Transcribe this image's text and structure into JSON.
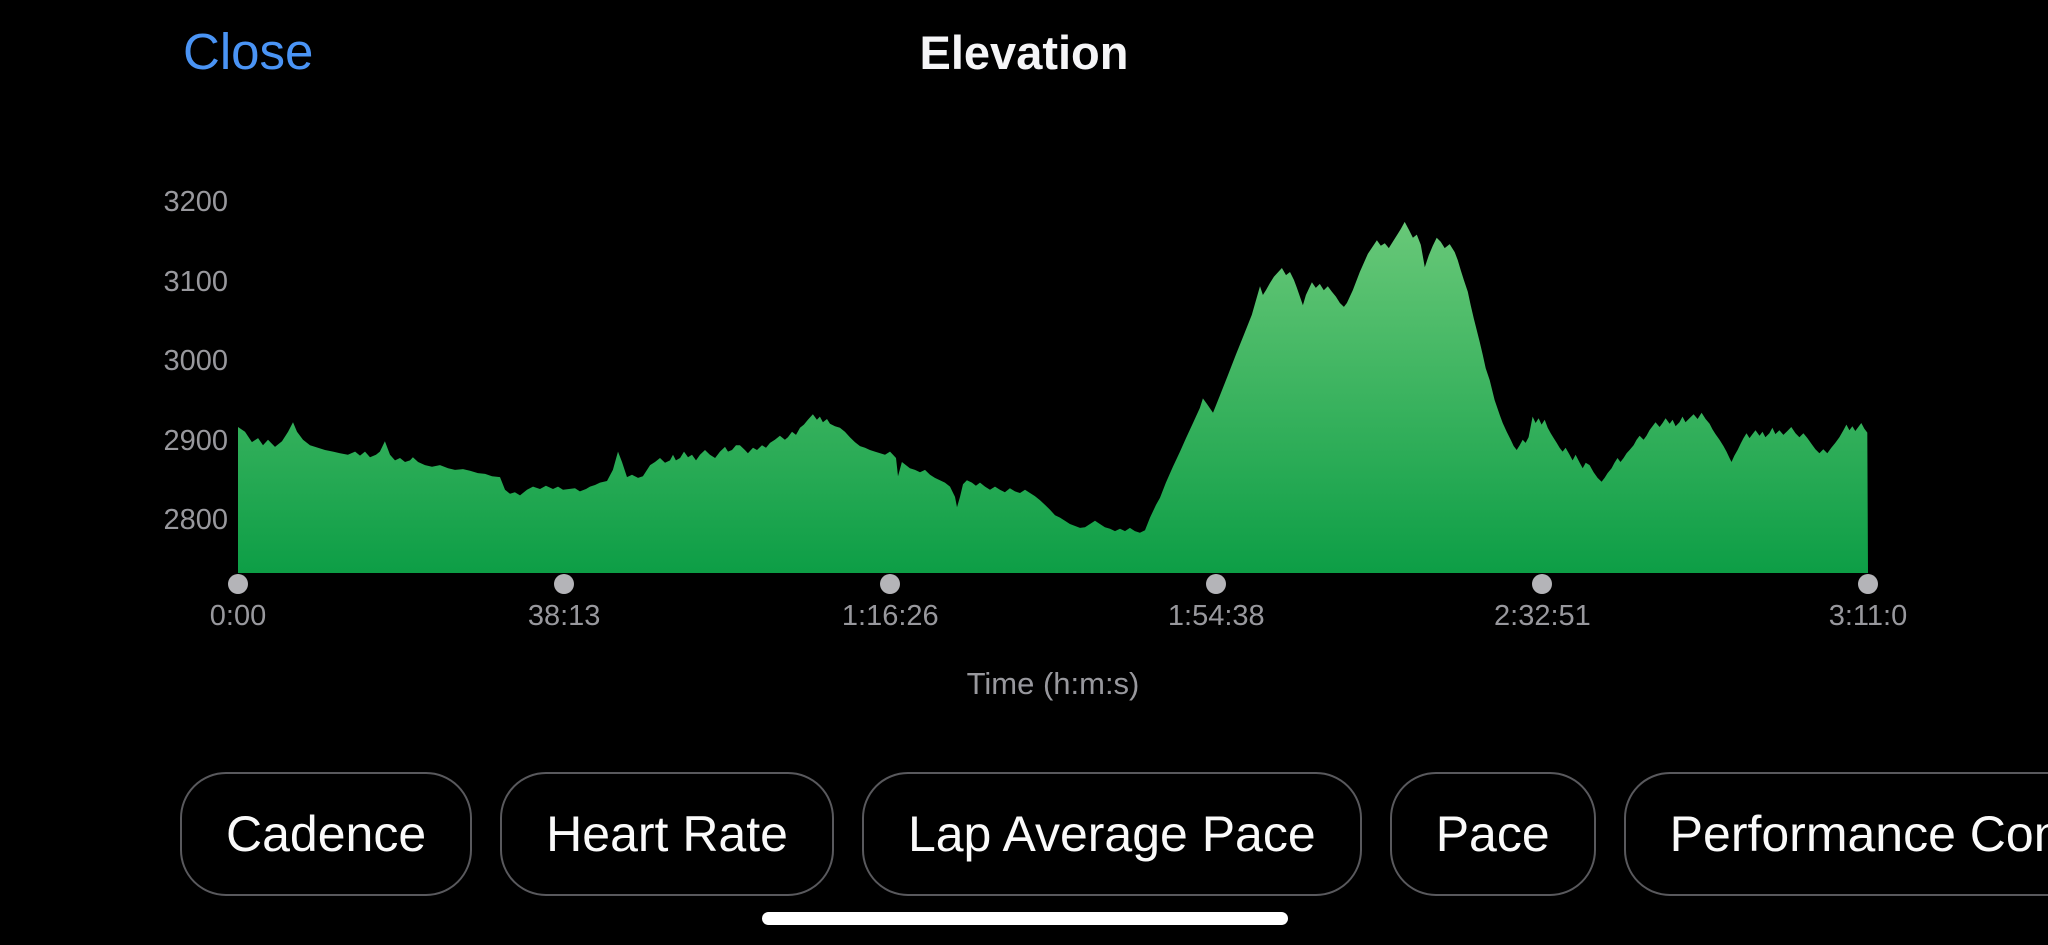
{
  "header": {
    "close_label": "Close",
    "title": "Elevation"
  },
  "chart_data": {
    "type": "area",
    "title": "Elevation",
    "xlabel": "Time (h:m:s)",
    "ylabel": "",
    "x_unit": "seconds",
    "x_range": [
      0,
      11460
    ],
    "ylim": [
      2733,
      3270
    ],
    "y_ticks": [
      2800,
      2900,
      3000,
      3100,
      3200
    ],
    "x_ticks": [
      {
        "t": 0,
        "label": "0:00"
      },
      {
        "t": 2293,
        "label": "38:13"
      },
      {
        "t": 4586,
        "label": "1:16:26"
      },
      {
        "t": 6878,
        "label": "1:54:38"
      },
      {
        "t": 9171,
        "label": "2:32:51"
      },
      {
        "t": 11460,
        "label": "3:11:0"
      }
    ],
    "grid": false,
    "legend": "none",
    "area_gradient": [
      "#68c878",
      "#0d9e46"
    ],
    "points": [
      [
        0,
        2917
      ],
      [
        49,
        2911
      ],
      [
        98,
        2898
      ],
      [
        141,
        2903
      ],
      [
        176,
        2894
      ],
      [
        211,
        2901
      ],
      [
        260,
        2892
      ],
      [
        309,
        2899
      ],
      [
        352,
        2911
      ],
      [
        387,
        2923
      ],
      [
        415,
        2911
      ],
      [
        457,
        2901
      ],
      [
        506,
        2894
      ],
      [
        562,
        2891
      ],
      [
        612,
        2888
      ],
      [
        668,
        2886
      ],
      [
        717,
        2884
      ],
      [
        773,
        2882
      ],
      [
        823,
        2886
      ],
      [
        858,
        2881
      ],
      [
        893,
        2886
      ],
      [
        928,
        2879
      ],
      [
        970,
        2882
      ],
      [
        998,
        2886
      ],
      [
        1033,
        2899
      ],
      [
        1069,
        2882
      ],
      [
        1104,
        2875
      ],
      [
        1139,
        2878
      ],
      [
        1174,
        2873
      ],
      [
        1209,
        2875
      ],
      [
        1230,
        2879
      ],
      [
        1266,
        2873
      ],
      [
        1315,
        2869
      ],
      [
        1364,
        2867
      ],
      [
        1420,
        2869
      ],
      [
        1477,
        2865
      ],
      [
        1526,
        2863
      ],
      [
        1582,
        2864
      ],
      [
        1631,
        2862
      ],
      [
        1687,
        2859
      ],
      [
        1737,
        2858
      ],
      [
        1786,
        2855
      ],
      [
        1842,
        2854
      ],
      [
        1877,
        2838
      ],
      [
        1912,
        2833
      ],
      [
        1947,
        2835
      ],
      [
        1983,
        2831
      ],
      [
        2032,
        2838
      ],
      [
        2074,
        2842
      ],
      [
        2123,
        2839
      ],
      [
        2165,
        2843
      ],
      [
        2215,
        2839
      ],
      [
        2250,
        2842
      ],
      [
        2285,
        2838
      ],
      [
        2369,
        2840
      ],
      [
        2404,
        2836
      ],
      [
        2447,
        2839
      ],
      [
        2475,
        2842
      ],
      [
        2510,
        2844
      ],
      [
        2545,
        2847
      ],
      [
        2594,
        2849
      ],
      [
        2636,
        2863
      ],
      [
        2672,
        2886
      ],
      [
        2700,
        2873
      ],
      [
        2735,
        2854
      ],
      [
        2770,
        2857
      ],
      [
        2812,
        2853
      ],
      [
        2847,
        2855
      ],
      [
        2897,
        2869
      ],
      [
        2932,
        2873
      ],
      [
        2967,
        2878
      ],
      [
        3002,
        2872
      ],
      [
        3037,
        2875
      ],
      [
        3058,
        2882
      ],
      [
        3079,
        2875
      ],
      [
        3108,
        2878
      ],
      [
        3136,
        2886
      ],
      [
        3164,
        2879
      ],
      [
        3192,
        2882
      ],
      [
        3220,
        2875
      ],
      [
        3248,
        2882
      ],
      [
        3283,
        2888
      ],
      [
        3318,
        2882
      ],
      [
        3354,
        2878
      ],
      [
        3389,
        2886
      ],
      [
        3424,
        2892
      ],
      [
        3445,
        2886
      ],
      [
        3473,
        2888
      ],
      [
        3501,
        2894
      ],
      [
        3529,
        2894
      ],
      [
        3564,
        2888
      ],
      [
        3585,
        2884
      ],
      [
        3621,
        2891
      ],
      [
        3649,
        2888
      ],
      [
        3684,
        2894
      ],
      [
        3712,
        2891
      ],
      [
        3740,
        2897
      ],
      [
        3775,
        2901
      ],
      [
        3810,
        2906
      ],
      [
        3845,
        2901
      ],
      [
        3866,
        2904
      ],
      [
        3895,
        2911
      ],
      [
        3923,
        2907
      ],
      [
        3951,
        2916
      ],
      [
        3979,
        2920
      ],
      [
        4007,
        2926
      ],
      [
        4042,
        2933
      ],
      [
        4070,
        2926
      ],
      [
        4091,
        2930
      ],
      [
        4112,
        2923
      ],
      [
        4141,
        2927
      ],
      [
        4162,
        2921
      ],
      [
        4197,
        2918
      ],
      [
        4232,
        2916
      ],
      [
        4267,
        2911
      ],
      [
        4302,
        2904
      ],
      [
        4337,
        2898
      ],
      [
        4373,
        2893
      ],
      [
        4408,
        2891
      ],
      [
        4443,
        2888
      ],
      [
        4478,
        2886
      ],
      [
        4549,
        2882
      ],
      [
        4584,
        2886
      ],
      [
        4605,
        2882
      ],
      [
        4626,
        2878
      ],
      [
        4640,
        2855
      ],
      [
        4668,
        2873
      ],
      [
        4696,
        2869
      ],
      [
        4724,
        2865
      ],
      [
        4760,
        2863
      ],
      [
        4795,
        2860
      ],
      [
        4830,
        2863
      ],
      [
        4865,
        2857
      ],
      [
        4900,
        2853
      ],
      [
        4935,
        2850
      ],
      [
        4970,
        2847
      ],
      [
        5006,
        2842
      ],
      [
        5041,
        2829
      ],
      [
        5055,
        2816
      ],
      [
        5076,
        2829
      ],
      [
        5097,
        2845
      ],
      [
        5125,
        2850
      ],
      [
        5160,
        2847
      ],
      [
        5188,
        2843
      ],
      [
        5217,
        2847
      ],
      [
        5252,
        2842
      ],
      [
        5287,
        2838
      ],
      [
        5322,
        2842
      ],
      [
        5357,
        2838
      ],
      [
        5392,
        2835
      ],
      [
        5427,
        2840
      ],
      [
        5463,
        2836
      ],
      [
        5498,
        2834
      ],
      [
        5533,
        2838
      ],
      [
        5568,
        2834
      ],
      [
        5603,
        2830
      ],
      [
        5638,
        2825
      ],
      [
        5674,
        2819
      ],
      [
        5709,
        2813
      ],
      [
        5744,
        2806
      ],
      [
        5779,
        2803
      ],
      [
        5814,
        2799
      ],
      [
        5849,
        2795
      ],
      [
        5920,
        2790
      ],
      [
        5955,
        2791
      ],
      [
        5990,
        2795
      ],
      [
        6025,
        2799
      ],
      [
        6060,
        2795
      ],
      [
        6095,
        2791
      ],
      [
        6131,
        2789
      ],
      [
        6166,
        2786
      ],
      [
        6201,
        2789
      ],
      [
        6236,
        2786
      ],
      [
        6271,
        2790
      ],
      [
        6306,
        2786
      ],
      [
        6341,
        2784
      ],
      [
        6377,
        2787
      ],
      [
        6412,
        2803
      ],
      [
        6454,
        2819
      ],
      [
        6482,
        2828
      ],
      [
        6524,
        2847
      ],
      [
        6573,
        2867
      ],
      [
        6623,
        2886
      ],
      [
        6665,
        2903
      ],
      [
        6714,
        2922
      ],
      [
        6763,
        2941
      ],
      [
        6784,
        2953
      ],
      [
        6812,
        2946
      ],
      [
        6855,
        2935
      ],
      [
        6904,
        2957
      ],
      [
        6960,
        2982
      ],
      [
        7016,
        3008
      ],
      [
        7072,
        3033
      ],
      [
        7128,
        3058
      ],
      [
        7185,
        3094
      ],
      [
        7206,
        3083
      ],
      [
        7227,
        3089
      ],
      [
        7255,
        3098
      ],
      [
        7283,
        3106
      ],
      [
        7339,
        3117
      ],
      [
        7368,
        3108
      ],
      [
        7396,
        3112
      ],
      [
        7424,
        3102
      ],
      [
        7445,
        3092
      ],
      [
        7487,
        3070
      ],
      [
        7508,
        3083
      ],
      [
        7550,
        3099
      ],
      [
        7578,
        3092
      ],
      [
        7606,
        3097
      ],
      [
        7634,
        3089
      ],
      [
        7662,
        3094
      ],
      [
        7691,
        3087
      ],
      [
        7719,
        3081
      ],
      [
        7747,
        3073
      ],
      [
        7775,
        3068
      ],
      [
        7796,
        3073
      ],
      [
        7838,
        3089
      ],
      [
        7887,
        3112
      ],
      [
        7944,
        3135
      ],
      [
        8007,
        3152
      ],
      [
        8035,
        3145
      ],
      [
        8063,
        3148
      ],
      [
        8091,
        3142
      ],
      [
        8119,
        3150
      ],
      [
        8175,
        3166
      ],
      [
        8203,
        3175
      ],
      [
        8232,
        3165
      ],
      [
        8260,
        3155
      ],
      [
        8288,
        3159
      ],
      [
        8316,
        3146
      ],
      [
        8344,
        3118
      ],
      [
        8372,
        3133
      ],
      [
        8400,
        3145
      ],
      [
        8428,
        3155
      ],
      [
        8456,
        3150
      ],
      [
        8484,
        3142
      ],
      [
        8519,
        3147
      ],
      [
        8554,
        3137
      ],
      [
        8575,
        3127
      ],
      [
        8597,
        3114
      ],
      [
        8618,
        3102
      ],
      [
        8646,
        3087
      ],
      [
        8667,
        3070
      ],
      [
        8688,
        3054
      ],
      [
        8709,
        3039
      ],
      [
        8730,
        3024
      ],
      [
        8751,
        3008
      ],
      [
        8772,
        2991
      ],
      [
        8800,
        2976
      ],
      [
        8835,
        2951
      ],
      [
        8871,
        2932
      ],
      [
        8892,
        2922
      ],
      [
        8920,
        2911
      ],
      [
        8948,
        2901
      ],
      [
        8969,
        2893
      ],
      [
        8990,
        2888
      ],
      [
        9011,
        2894
      ],
      [
        9032,
        2901
      ],
      [
        9053,
        2897
      ],
      [
        9074,
        2904
      ],
      [
        9102,
        2930
      ],
      [
        9123,
        2922
      ],
      [
        9144,
        2928
      ],
      [
        9165,
        2920
      ],
      [
        9187,
        2926
      ],
      [
        9208,
        2916
      ],
      [
        9229,
        2909
      ],
      [
        9250,
        2903
      ],
      [
        9271,
        2897
      ],
      [
        9292,
        2891
      ],
      [
        9313,
        2886
      ],
      [
        9334,
        2891
      ],
      [
        9362,
        2882
      ],
      [
        9383,
        2875
      ],
      [
        9404,
        2882
      ],
      [
        9433,
        2872
      ],
      [
        9454,
        2865
      ],
      [
        9475,
        2872
      ],
      [
        9503,
        2869
      ],
      [
        9531,
        2860
      ],
      [
        9559,
        2853
      ],
      [
        9587,
        2848
      ],
      [
        9608,
        2853
      ],
      [
        9629,
        2859
      ],
      [
        9657,
        2865
      ],
      [
        9678,
        2872
      ],
      [
        9699,
        2878
      ],
      [
        9720,
        2873
      ],
      [
        9742,
        2878
      ],
      [
        9763,
        2884
      ],
      [
        9784,
        2888
      ],
      [
        9812,
        2894
      ],
      [
        9833,
        2901
      ],
      [
        9854,
        2906
      ],
      [
        9882,
        2901
      ],
      [
        9903,
        2906
      ],
      [
        9924,
        2913
      ],
      [
        9945,
        2918
      ],
      [
        9966,
        2923
      ],
      [
        9995,
        2917
      ],
      [
        10016,
        2922
      ],
      [
        10037,
        2928
      ],
      [
        10065,
        2921
      ],
      [
        10086,
        2926
      ],
      [
        10107,
        2918
      ],
      [
        10135,
        2923
      ],
      [
        10156,
        2930
      ],
      [
        10177,
        2923
      ],
      [
        10205,
        2928
      ],
      [
        10234,
        2933
      ],
      [
        10262,
        2927
      ],
      [
        10290,
        2935
      ],
      [
        10318,
        2927
      ],
      [
        10346,
        2921
      ],
      [
        10367,
        2914
      ],
      [
        10388,
        2908
      ],
      [
        10416,
        2901
      ],
      [
        10444,
        2893
      ],
      [
        10465,
        2886
      ],
      [
        10486,
        2878
      ],
      [
        10500,
        2873
      ],
      [
        10521,
        2881
      ],
      [
        10543,
        2888
      ],
      [
        10564,
        2896
      ],
      [
        10585,
        2903
      ],
      [
        10606,
        2909
      ],
      [
        10627,
        2903
      ],
      [
        10648,
        2908
      ],
      [
        10669,
        2913
      ],
      [
        10697,
        2906
      ],
      [
        10718,
        2911
      ],
      [
        10739,
        2904
      ],
      [
        10767,
        2909
      ],
      [
        10788,
        2916
      ],
      [
        10809,
        2908
      ],
      [
        10837,
        2913
      ],
      [
        10865,
        2907
      ],
      [
        10893,
        2912
      ],
      [
        10921,
        2917
      ],
      [
        10950,
        2909
      ],
      [
        10978,
        2904
      ],
      [
        11006,
        2909
      ],
      [
        11034,
        2903
      ],
      [
        11062,
        2896
      ],
      [
        11090,
        2889
      ],
      [
        11118,
        2884
      ],
      [
        11146,
        2889
      ],
      [
        11174,
        2884
      ],
      [
        11202,
        2891
      ],
      [
        11230,
        2897
      ],
      [
        11259,
        2904
      ],
      [
        11287,
        2913
      ],
      [
        11308,
        2920
      ],
      [
        11329,
        2913
      ],
      [
        11350,
        2918
      ],
      [
        11371,
        2912
      ],
      [
        11392,
        2917
      ],
      [
        11413,
        2922
      ],
      [
        11434,
        2915
      ],
      [
        11455,
        2910
      ]
    ]
  },
  "buttons": [
    {
      "label": "Cadence"
    },
    {
      "label": "Heart Rate"
    },
    {
      "label": "Lap Average Pace"
    },
    {
      "label": "Pace"
    },
    {
      "label": "Performance Condition"
    }
  ],
  "colors": {
    "background": "#000000",
    "accent_blue": "#4a94f5",
    "title_text": "#f5f5f7",
    "axis_text": "#98989d",
    "tick_dot": "#b4b4b8",
    "area_green_top": "#68c878",
    "area_green_bottom": "#0d9e46",
    "button_border": "#59595d",
    "button_text": "#fafafa",
    "home_indicator": "#ffffff"
  }
}
